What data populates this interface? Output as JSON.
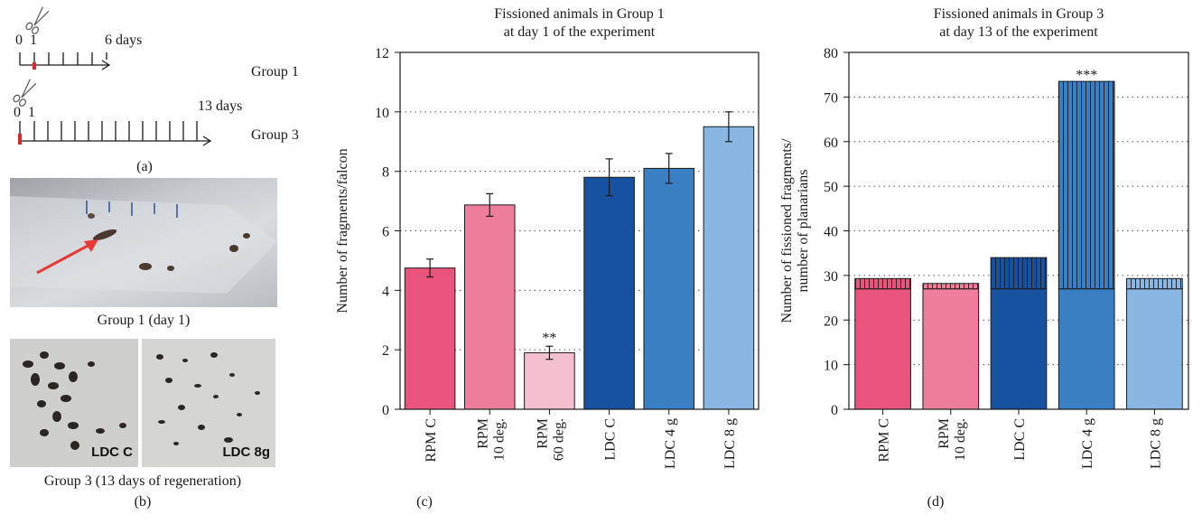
{
  "panel_a": {
    "label": "(a)",
    "group1": {
      "start": "0",
      "cut_day": "1",
      "end": "6 days",
      "name": "Group 1"
    },
    "group3": {
      "start": "0",
      "cut_day": "1",
      "end": "13 days",
      "name": "Group 3"
    }
  },
  "panel_b": {
    "label": "(b)",
    "caption_top": "Group 1 (day 1)",
    "caption_bottom": "Group 3 (13 days of regeneration)",
    "photo_left_tag": "LDC C",
    "photo_right_tag": "LDC 8g"
  },
  "panel_c": {
    "label": "(c)"
  },
  "panel_d": {
    "label": "(d)"
  },
  "colors": {
    "rpm_c": "#e8547c",
    "rpm_10": "#ee7e9b",
    "rpm_60": "#f4c0cf",
    "ldc_c": "#1652a0",
    "ldc_4g": "#3a7ec4",
    "ldc_8g": "#8ab6e4"
  },
  "chart_data": [
    {
      "type": "bar",
      "title": [
        "Fissioned animals in Group 1",
        "at day 1 of the experiment"
      ],
      "ylabel": "Number of fragments/falcon",
      "ylim": [
        0,
        12
      ],
      "yticks": [
        0,
        2,
        4,
        6,
        8,
        10,
        12
      ],
      "grid": "horizontal dotted",
      "categories": [
        [
          "RPM C"
        ],
        [
          "RPM",
          "10 deg."
        ],
        [
          "RPM",
          "60 deg."
        ],
        [
          "LDC C"
        ],
        [
          "LDC 4 g"
        ],
        [
          "LDC 8 g"
        ]
      ],
      "values": [
        4.75,
        6.87,
        1.9,
        7.8,
        8.1,
        9.5
      ],
      "errors": [
        0.3,
        0.38,
        0.22,
        0.62,
        0.5,
        0.5
      ],
      "annotations": [
        {
          "category_index": 2,
          "text": "**"
        }
      ]
    },
    {
      "type": "bar",
      "title": [
        "Fissioned animals in Group 3",
        "at day 13 of the experiment"
      ],
      "ylabel": [
        "Number of fissioned fragments/",
        "number of planarians"
      ],
      "ylim": [
        0,
        80
      ],
      "yticks": [
        0,
        10,
        20,
        30,
        40,
        50,
        60,
        70,
        80
      ],
      "grid": "horizontal dotted",
      "stacked": true,
      "categories": [
        [
          "RPM C"
        ],
        [
          "RPM",
          "10 deg."
        ],
        [
          "LDC C"
        ],
        [
          "LDC 4 g"
        ],
        [
          "LDC 8 g"
        ]
      ],
      "series": [
        {
          "values": [
            27,
            27,
            27,
            27,
            27
          ]
        },
        {
          "values": [
            2.3,
            1.2,
            7,
            46.5,
            2.3
          ],
          "pattern": "vertical hatch"
        }
      ],
      "totals": [
        29.3,
        28.2,
        34,
        73.5,
        29.3
      ],
      "annotations": [
        {
          "category_index": 3,
          "text": "***"
        }
      ]
    }
  ]
}
